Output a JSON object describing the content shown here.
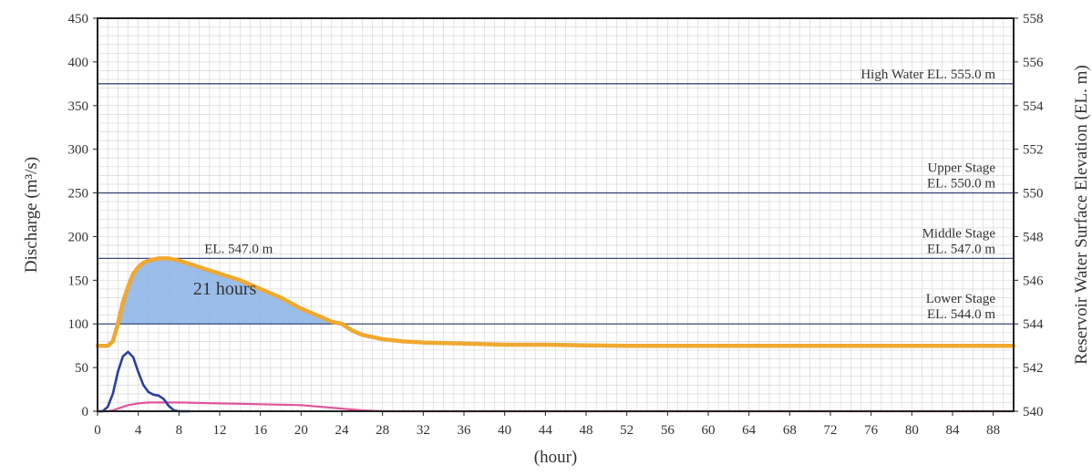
{
  "chart_data": {
    "type": "line",
    "title": "",
    "xlabel": "(hour)",
    "ylabel": "Discharge (m³/s)",
    "y2label": "Reservoir Water Surface Elevation (EL. m)",
    "xlim": [
      0,
      90
    ],
    "ylim": [
      0,
      450
    ],
    "y2lim": [
      540,
      558
    ],
    "x_ticks": [
      "0",
      "4",
      "8",
      "12",
      "16",
      "20",
      "24",
      "28",
      "32",
      "36",
      "40",
      "44",
      "48",
      "52",
      "56",
      "60",
      "64",
      "68",
      "72",
      "76",
      "80",
      "84",
      "88"
    ],
    "y_ticks": [
      "0",
      "50",
      "100",
      "150",
      "200",
      "250",
      "300",
      "350",
      "400",
      "450"
    ],
    "y2_ticks": [
      "540",
      "542",
      "544",
      "546",
      "548",
      "550",
      "552",
      "554",
      "556",
      "558"
    ],
    "grid": true,
    "colors": {
      "elevation": "#f0a830",
      "inflow": "#2b3fa0",
      "outflow": "#e0559a",
      "shade": "#8fb6e8",
      "stage_line": "#3a4a7a",
      "grid": "#d8d8d8"
    },
    "reference_lines": [
      {
        "elevation": 555.0,
        "label_lines": [
          "High Water EL. 555.0 m"
        ]
      },
      {
        "elevation": 550.0,
        "label_lines": [
          "Upper Stage",
          "EL. 550.0 m"
        ]
      },
      {
        "elevation": 547.0,
        "label_lines": [
          "Middle Stage",
          "EL. 547.0 m"
        ]
      },
      {
        "elevation": 544.0,
        "label_lines": [
          "Lower Stage",
          "EL. 544.0 m"
        ]
      }
    ],
    "annotations": {
      "el_label": "EL. 547.0 m",
      "duration_label": "21 hours"
    },
    "series": [
      {
        "key": "elevation",
        "axis": "y2",
        "x": [
          0,
          1,
          1.5,
          2,
          2.5,
          3,
          3.5,
          4,
          4.5,
          5,
          6,
          7,
          8,
          10,
          12,
          14,
          16,
          18,
          20,
          22,
          23,
          24,
          25,
          26,
          28,
          30,
          32,
          36,
          40,
          44,
          48,
          52,
          60,
          70,
          80,
          90
        ],
        "y": [
          543.0,
          543.0,
          543.2,
          544.0,
          545.0,
          545.7,
          546.3,
          546.6,
          546.8,
          546.9,
          547.0,
          547.0,
          546.9,
          546.6,
          546.3,
          546.0,
          545.6,
          545.2,
          544.7,
          544.3,
          544.1,
          544.0,
          543.7,
          543.5,
          543.3,
          543.2,
          543.15,
          543.1,
          543.05,
          543.05,
          543.02,
          543.0,
          543.0,
          543.0,
          543.0,
          543.0
        ]
      },
      {
        "key": "inflow",
        "axis": "y",
        "x": [
          0,
          0.5,
          1,
          1.5,
          2,
          2.5,
          3,
          3.5,
          4,
          4.5,
          5,
          5.5,
          6,
          6.5,
          7,
          7.5,
          8,
          9
        ],
        "y": [
          0,
          0,
          5,
          20,
          45,
          63,
          68,
          62,
          45,
          30,
          22,
          19,
          18,
          14,
          6,
          1,
          0,
          0
        ]
      },
      {
        "key": "outflow",
        "axis": "y",
        "x": [
          0,
          1,
          1.5,
          2,
          3,
          4,
          5,
          6,
          7,
          8,
          12,
          16,
          20,
          22,
          24,
          26,
          28,
          30,
          40,
          60,
          90
        ],
        "y": [
          0,
          0,
          1,
          3,
          7,
          9,
          10,
          10,
          10,
          10,
          9,
          8,
          7,
          5,
          3,
          1,
          0,
          0,
          0,
          0,
          0
        ]
      }
    ]
  }
}
